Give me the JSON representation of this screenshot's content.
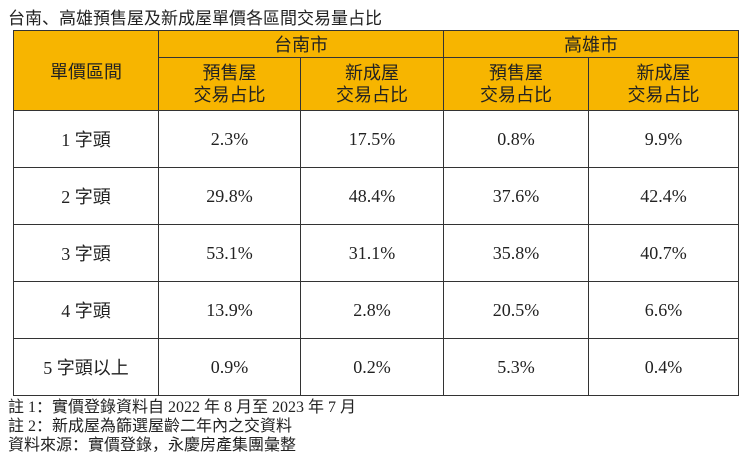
{
  "title": "台南、高雄預售屋及新成屋單價各區間交易量占比",
  "table": {
    "corner": "單價區間",
    "groups": [
      "台南市",
      "高雄市"
    ],
    "subheaders": [
      [
        "預售屋",
        "交易占比"
      ],
      [
        "新成屋",
        "交易占比"
      ],
      [
        "預售屋",
        "交易占比"
      ],
      [
        "新成屋",
        "交易占比"
      ]
    ],
    "rows": [
      [
        "1 字頭",
        "2.3%",
        "17.5%",
        "0.8%",
        "9.9%"
      ],
      [
        "2 字頭",
        "29.8%",
        "48.4%",
        "37.6%",
        "42.4%"
      ],
      [
        "3 字頭",
        "53.1%",
        "31.1%",
        "35.8%",
        "40.7%"
      ],
      [
        "4 字頭",
        "13.9%",
        "2.8%",
        "20.5%",
        "6.6%"
      ],
      [
        "5 字頭以上",
        "0.9%",
        "0.2%",
        "5.3%",
        "0.4%"
      ]
    ]
  },
  "notes": [
    "註 1：實價登錄資料自 2022 年 8 月至 2023 年 7 月",
    "註 2：新成屋為篩選屋齡二年內之交資料",
    "資料來源：實價登錄，永慶房產集團彙整"
  ]
}
